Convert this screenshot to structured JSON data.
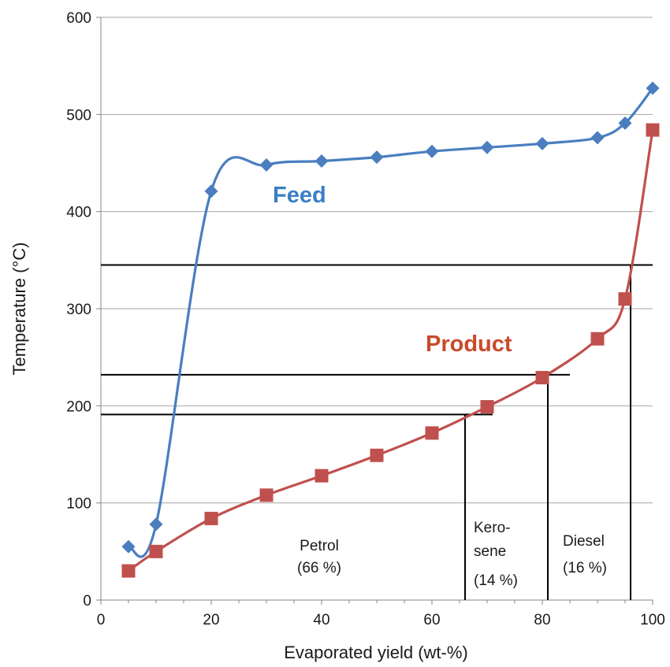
{
  "chart_data": {
    "type": "line",
    "title": "",
    "xlabel": "Evaporated yield (wt-%)",
    "ylabel": "Temperature (°C)",
    "xlim": [
      0,
      100
    ],
    "ylim": [
      0,
      600
    ],
    "x_ticks": [
      0,
      20,
      40,
      60,
      80,
      100
    ],
    "y_ticks": [
      0,
      100,
      200,
      300,
      400,
      500,
      600
    ],
    "grid": "horizontal",
    "series": [
      {
        "name": "Feed",
        "color": "#4a7ebf",
        "marker": "diamond",
        "x": [
          5,
          10,
          20,
          30,
          40,
          50,
          60,
          70,
          80,
          90,
          95,
          100
        ],
        "y": [
          55,
          78,
          421,
          448,
          452,
          456,
          462,
          466,
          470,
          476,
          491,
          527
        ]
      },
      {
        "name": "Product",
        "color": "#c0504d",
        "marker": "square",
        "x": [
          5,
          10,
          20,
          30,
          40,
          50,
          60,
          70,
          80,
          90,
          95,
          100
        ],
        "y": [
          30,
          50,
          84,
          108,
          128,
          149,
          172,
          199,
          229,
          269,
          310,
          484
        ]
      }
    ],
    "reference_lines": [
      {
        "type": "horizontal",
        "y": 345,
        "x_from": 0,
        "x_to": 100
      },
      {
        "type": "horizontal",
        "y": 232,
        "x_from": 0,
        "x_to": 85
      },
      {
        "type": "horizontal",
        "y": 191,
        "x_from": 0,
        "x_to": 71
      },
      {
        "type": "vertical",
        "x": 66,
        "y_from": 0,
        "y_to": 191
      },
      {
        "type": "vertical",
        "x": 81,
        "y_from": 0,
        "y_to": 232
      },
      {
        "type": "vertical",
        "x": 96,
        "y_from": 0,
        "y_to": 345
      }
    ],
    "annotations": [
      {
        "lines": [
          "Petrol",
          "(66 %)"
        ]
      },
      {
        "lines": [
          "Kero-",
          "sene",
          "(14 %)"
        ]
      },
      {
        "lines": [
          "Diesel",
          "(16 %)"
        ]
      }
    ]
  }
}
